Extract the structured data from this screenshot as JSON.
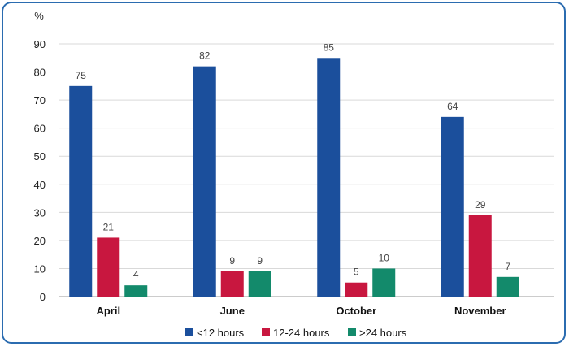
{
  "chart_data": {
    "type": "bar",
    "ylabel": "%",
    "ylim": [
      0,
      90
    ],
    "yticks": [
      0,
      10,
      20,
      30,
      40,
      50,
      60,
      70,
      80,
      90
    ],
    "grid": true,
    "legend_position": "bottom",
    "categories": [
      "April",
      "June",
      "October",
      "November"
    ],
    "series": [
      {
        "name": "<12 hours",
        "color": "#1b4f9c",
        "values": [
          75,
          82,
          85,
          64
        ]
      },
      {
        "name": "12-24 hours",
        "color": "#c8173f",
        "values": [
          21,
          9,
          5,
          29
        ]
      },
      {
        "name": ">24 hours",
        "color": "#138a6b",
        "values": [
          4,
          9,
          10,
          7
        ]
      }
    ]
  }
}
